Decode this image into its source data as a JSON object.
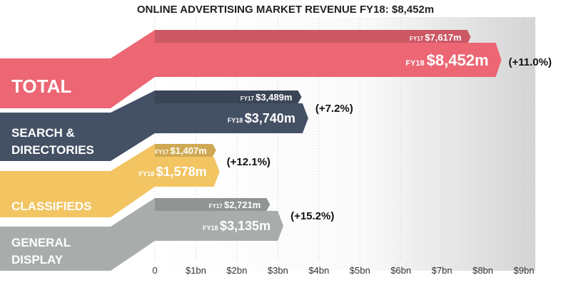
{
  "chart_data": {
    "type": "bar",
    "title_prefix": "ONLINE ADVERTISING MARKET REVENUE FY18: ",
    "title_value": "$8,452m",
    "categories": [
      {
        "lines": [
          "TOTAL"
        ],
        "color": "#ec6674"
      },
      {
        "lines": [
          "SEARCH &",
          "DIRECTORIES"
        ],
        "color": "#445064"
      },
      {
        "lines": [
          "CLASSIFIEDS"
        ],
        "color": "#f2c462"
      },
      {
        "lines": [
          "GENERAL",
          "DISPLAY"
        ],
        "color": "#a8adab"
      }
    ],
    "series": [
      {
        "name": "FY17",
        "values": [
          7617,
          3489,
          1407,
          2721
        ],
        "labels": [
          "$7,617m",
          "$3,489m",
          "$1,407m",
          "$2,721m"
        ]
      },
      {
        "name": "FY18",
        "values": [
          8452,
          3740,
          1578,
          3135
        ],
        "labels": [
          "$8,452m",
          "$3,740m",
          "$1,578m",
          "$3,135m"
        ]
      }
    ],
    "growth": [
      "(+11.0%)",
      "(+7.2%)",
      "(+12.1%)",
      "(+15.2%)"
    ],
    "x_unit": "millions",
    "xlim": [
      0,
      9000
    ],
    "xticks": [
      0,
      1000,
      2000,
      3000,
      4000,
      5000,
      6000,
      7000,
      8000,
      9000
    ],
    "xtick_labels": [
      "0",
      "$1bn",
      "$2bn",
      "$3bn",
      "$4bn",
      "$5bn",
      "$6bn",
      "$7bn",
      "$8bn",
      "$9bn"
    ]
  }
}
